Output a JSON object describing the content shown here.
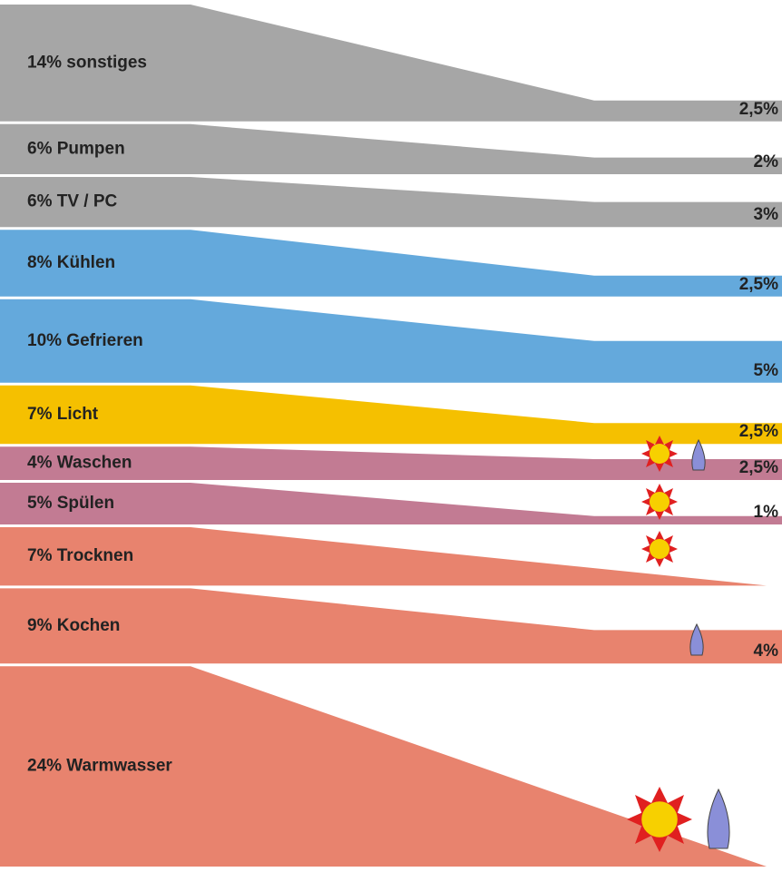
{
  "chart_data": {
    "type": "flow",
    "rows": [
      {
        "label": "14% sonstiges",
        "value": 14,
        "reduced_label": "2,5%",
        "reduced": 2.5,
        "color": "#a6a6a6"
      },
      {
        "label": "6% Pumpen",
        "value": 6,
        "reduced_label": "2%",
        "reduced": 2,
        "color": "#a6a6a6"
      },
      {
        "label": "6% TV / PC",
        "value": 6,
        "reduced_label": "3%",
        "reduced": 3,
        "color": "#a6a6a6"
      },
      {
        "label": "8% Kühlen",
        "value": 8,
        "reduced_label": "2,5%",
        "reduced": 2.5,
        "color": "#64a9dc"
      },
      {
        "label": "10% Gefrieren",
        "value": 10,
        "reduced_label": "5%",
        "reduced": 5,
        "color": "#64a9dc"
      },
      {
        "label": "7% Licht",
        "value": 7,
        "reduced_label": "2,5%",
        "reduced": 2.5,
        "color": "#f5c000"
      },
      {
        "label": "4% Waschen",
        "value": 4,
        "reduced_label": "2,5%",
        "reduced": 2.5,
        "color": "#c27b93"
      },
      {
        "label": "5% Spülen",
        "value": 5,
        "reduced_label": "1%",
        "reduced": 1,
        "color": "#c27b93"
      },
      {
        "label": "7% Trocknen",
        "value": 7,
        "color": "#e8836e"
      },
      {
        "label": "9% Kochen",
        "value": 9,
        "reduced_label": "4%",
        "reduced": 4,
        "color": "#e8836e"
      },
      {
        "label": "24% Warmwasser",
        "value": 24,
        "color": "#e8836e"
      }
    ]
  }
}
